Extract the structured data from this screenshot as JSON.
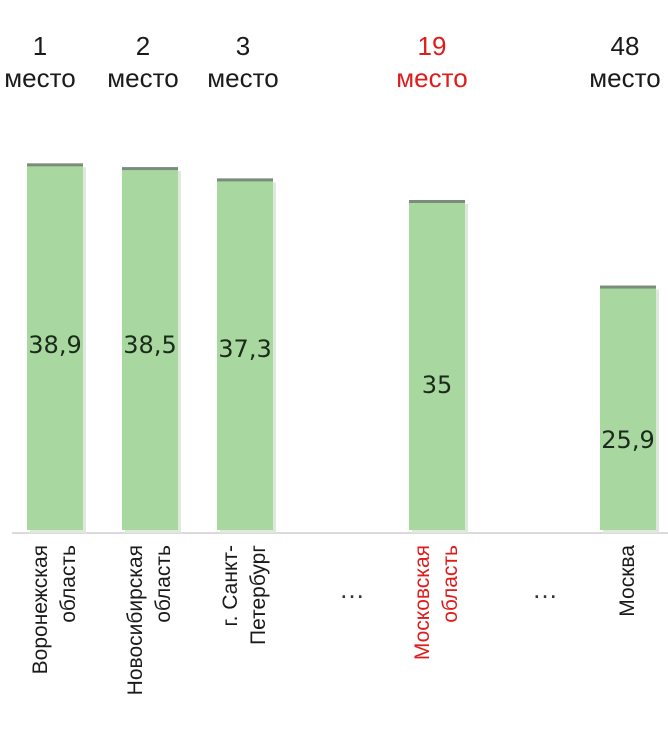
{
  "colors": {
    "bar": "#a8d8a0",
    "bar_top": "#7a8c7a",
    "text": "#1a1a1a",
    "highlight": "#e01b1b"
  },
  "chart_data": {
    "type": "bar",
    "title": "",
    "xlabel": "",
    "ylabel": "",
    "ylim": [
      0,
      40
    ],
    "categories": [
      [
        "Воронежская",
        "область"
      ],
      [
        "Новосибирская",
        "область"
      ],
      [
        "г. Санкт-",
        "Петербург"
      ],
      [
        "Московская",
        "область"
      ],
      [
        "Москва"
      ]
    ],
    "values": [
      38.9,
      38.5,
      37.3,
      35,
      25.9
    ],
    "value_labels": [
      "38,9",
      "38,5",
      "37,3",
      "35",
      "25,9"
    ],
    "ranks": [
      "1",
      "2",
      "3",
      "19",
      "48"
    ],
    "rank_word": "место",
    "highlight_index": 3,
    "gap_marker": "…"
  }
}
